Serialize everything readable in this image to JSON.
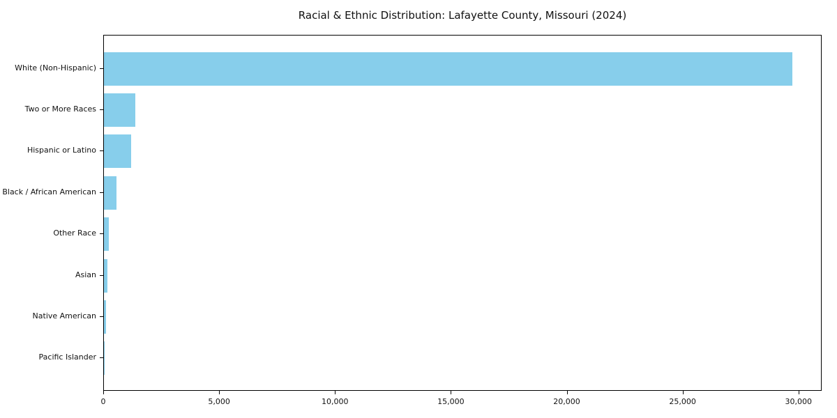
{
  "chart_data": {
    "type": "bar",
    "orientation": "horizontal",
    "title": "Racial & Ethnic Distribution: Lafayette County, Missouri (2024)",
    "categories": [
      "White (Non-Hispanic)",
      "Two or More Races",
      "Hispanic or Latino",
      "Black / African American",
      "Other Race",
      "Asian",
      "Native American",
      "Pacific Islander"
    ],
    "values": [
      29700,
      1350,
      1170,
      540,
      220,
      140,
      90,
      12
    ],
    "xlabel": "",
    "ylabel": "",
    "xlim": [
      0,
      31000
    ],
    "x_ticks": [
      0,
      5000,
      10000,
      15000,
      20000,
      25000,
      30000
    ],
    "x_tick_labels": [
      "0",
      "5,000",
      "10,000",
      "15,000",
      "20,000",
      "25,000",
      "30,000"
    ],
    "grid": false,
    "legend": false,
    "bar_color": "#87CEEB"
  },
  "colors": {
    "background": "#ffffff",
    "bar": "#87CEEB",
    "axis": "#000000",
    "text": "#111111"
  }
}
